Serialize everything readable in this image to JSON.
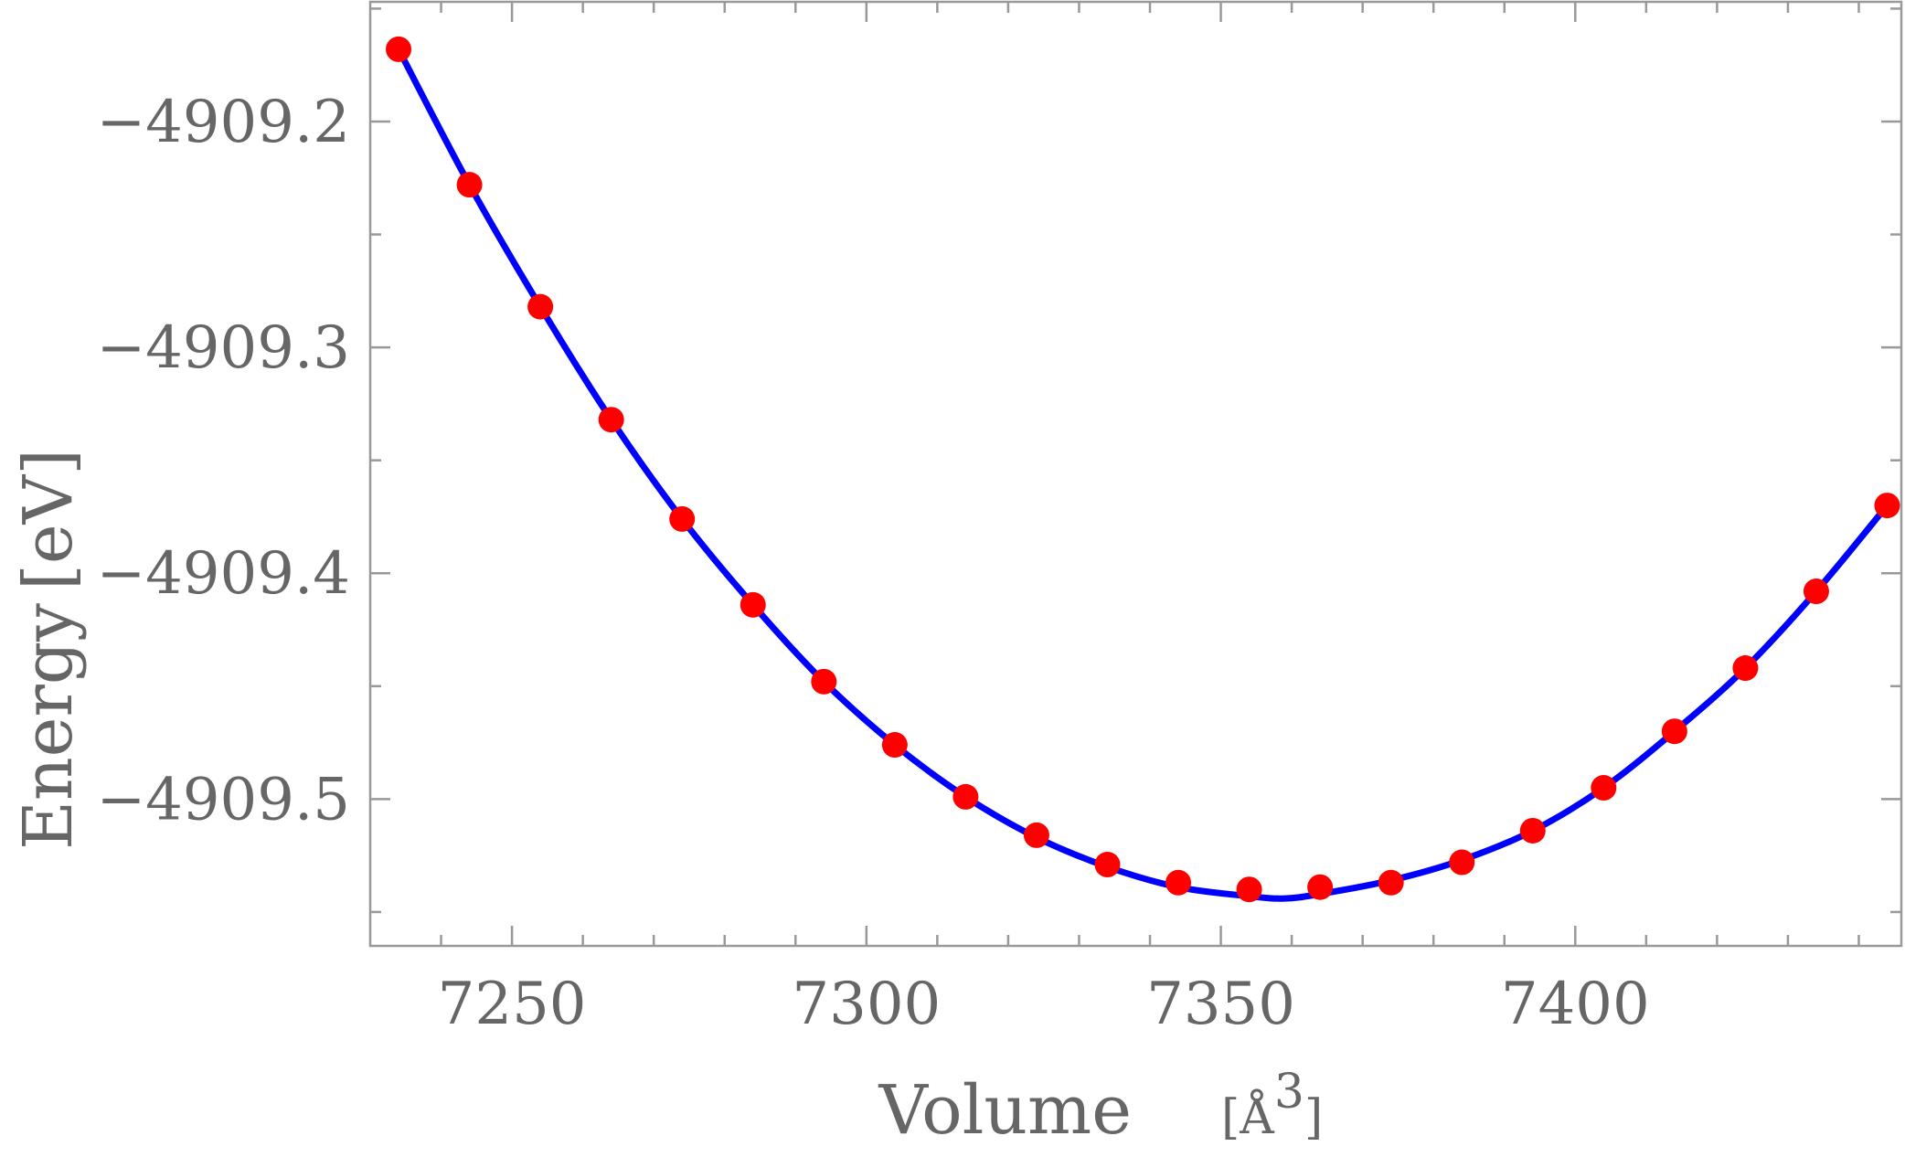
{
  "chart_data": {
    "type": "scatter",
    "title": "",
    "xlabel": "Volume",
    "xlabel_unit": "[Å",
    "xlabel_unit_sup": "3",
    "xlabel_unit_close": "]",
    "ylabel": "Energy",
    "ylabel_unit": "[eV]",
    "xlim": [
      7230,
      7446
    ],
    "ylim": [
      -4909.565,
      -4909.147
    ],
    "x_ticks": [
      {
        "value": 7250,
        "label": "7250"
      },
      {
        "value": 7300,
        "label": "7300"
      },
      {
        "value": 7350,
        "label": "7350"
      },
      {
        "value": 7400,
        "label": "7400"
      }
    ],
    "y_ticks": [
      {
        "value": -4909.2,
        "label": "−4909.2"
      },
      {
        "value": -4909.3,
        "label": "−4909.3"
      },
      {
        "value": -4909.4,
        "label": "−4909.4"
      },
      {
        "value": -4909.5,
        "label": "−4909.5"
      }
    ],
    "grid": false,
    "series": [
      {
        "kind": "points",
        "color": "#ff0000",
        "x": [
          7234,
          7244,
          7254,
          7264,
          7274,
          7284,
          7294,
          7304,
          7314,
          7324,
          7334,
          7344,
          7354,
          7364,
          7374,
          7384,
          7394,
          7404,
          7414,
          7424,
          7434,
          7444
        ],
        "y": [
          -4909.168,
          -4909.228,
          -4909.282,
          -4909.332,
          -4909.376,
          -4909.414,
          -4909.448,
          -4909.476,
          -4909.499,
          -4909.516,
          -4909.529,
          -4909.537,
          -4909.54,
          -4909.539,
          -4909.537,
          -4909.528,
          -4909.514,
          -4909.495,
          -4909.47,
          -4909.442,
          -4909.408,
          -4909.37
        ]
      },
      {
        "kind": "fit-line",
        "color": "#0000ff",
        "x": [
          7234,
          7244,
          7254,
          7264,
          7274,
          7284,
          7294,
          7304,
          7314,
          7324,
          7334,
          7344,
          7354,
          7359,
          7364,
          7374,
          7384,
          7394,
          7404,
          7414,
          7424,
          7434,
          7444
        ],
        "y": [
          -4909.168,
          -4909.228,
          -4909.282,
          -4909.332,
          -4909.376,
          -4909.414,
          -4909.448,
          -4909.476,
          -4909.499,
          -4909.517,
          -4909.53,
          -4909.539,
          -4909.543,
          -4909.544,
          -4909.542,
          -4909.536,
          -4909.527,
          -4909.514,
          -4909.495,
          -4909.47,
          -4909.442,
          -4909.408,
          -4909.37
        ]
      }
    ]
  }
}
